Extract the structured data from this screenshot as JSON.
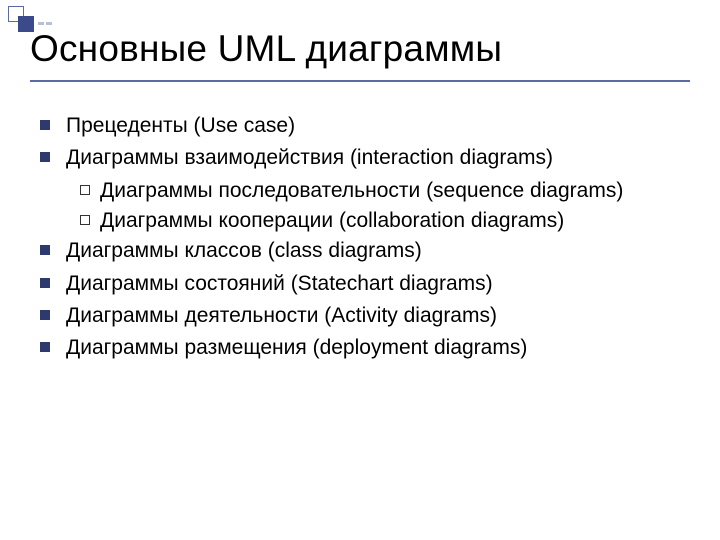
{
  "title": "Основные UML диаграммы",
  "items": [
    {
      "level": 1,
      "text": "Прецеденты (Use case)"
    },
    {
      "level": 1,
      "text": "Диаграммы взаимодействия (interaction diagrams)"
    },
    {
      "level": 2,
      "text": "Диаграммы последовательности (sequence diagrams)"
    },
    {
      "level": 2,
      "text": "Диаграммы кооперации (collaboration diagrams)"
    },
    {
      "level": 1,
      "text": "Диаграммы классов (class diagrams)"
    },
    {
      "level": 1,
      "text": "Диаграммы состояний (Statechart diagrams)"
    },
    {
      "level": 1,
      "text": "Диаграммы деятельности (Activity diagrams)"
    },
    {
      "level": 1,
      "text": "Диаграммы размещения (deployment diagrams)"
    }
  ],
  "colors": {
    "accent": "#3a4a8a",
    "underline": "#5b6aa0",
    "text": "#000000",
    "background": "#ffffff"
  },
  "fonts": {
    "title_size": 37,
    "body_size": 21
  }
}
